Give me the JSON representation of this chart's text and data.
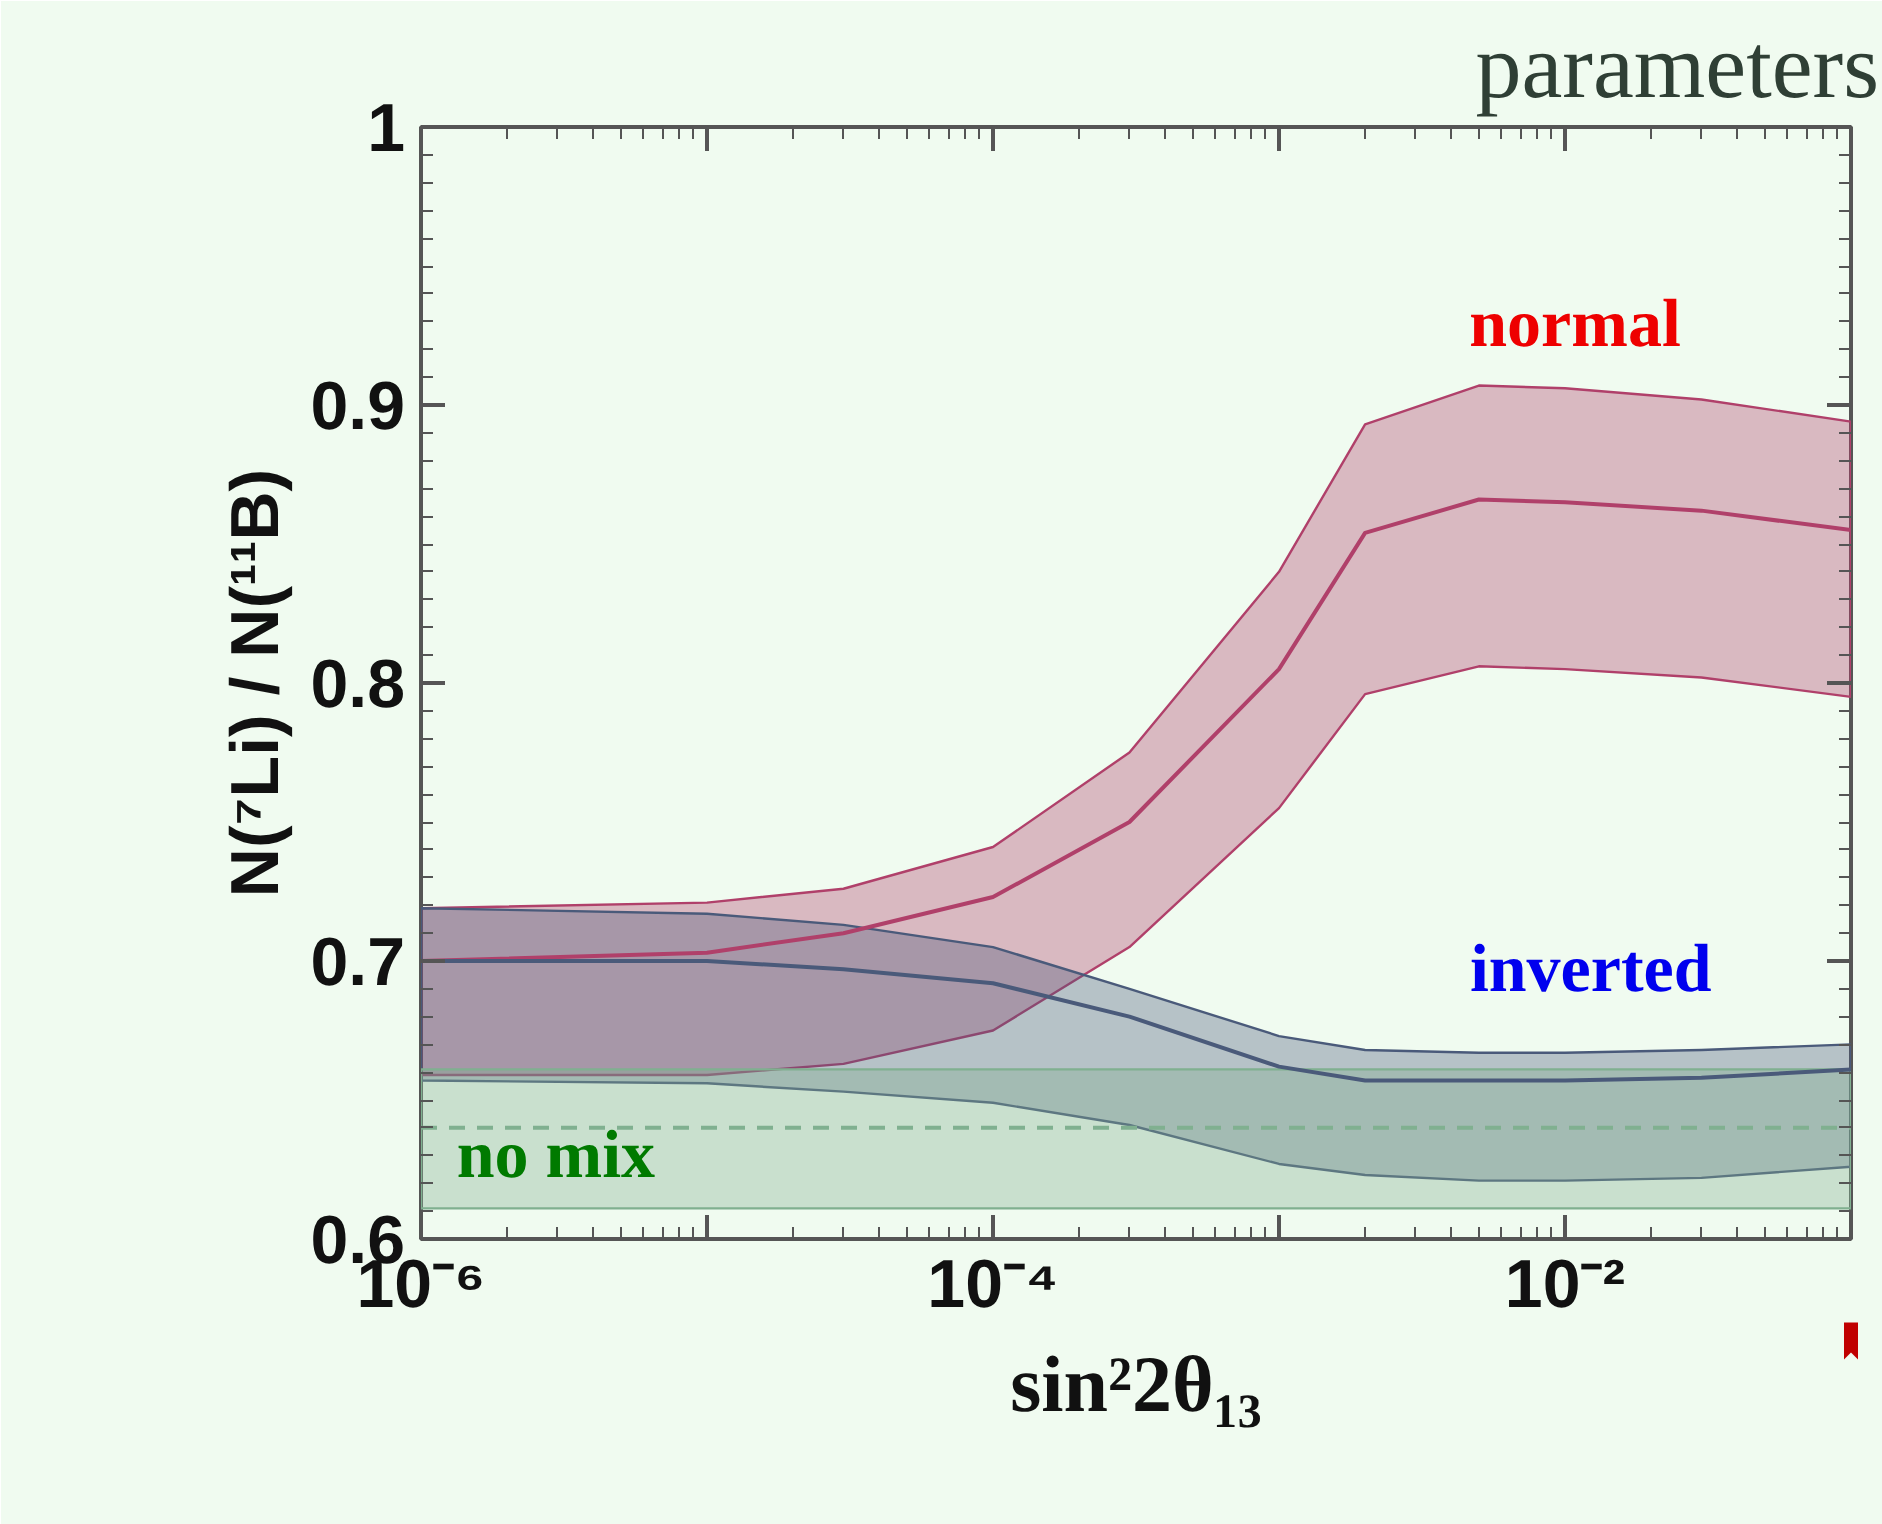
{
  "chart_data": {
    "type": "line",
    "xlabel": "sin²2θ₁₃",
    "ylabel": "N(⁷Li) / N(¹¹B)",
    "log": "x",
    "x": [
      1e-06,
      1e-05,
      3e-05,
      0.0001,
      0.0003,
      0.001,
      0.002,
      0.005,
      0.01,
      0.03,
      0.1
    ],
    "series": [
      {
        "color": "#b0406a",
        "values": [
          0.7,
          0.703,
          0.71,
          0.723,
          0.75,
          0.805,
          0.854,
          0.866,
          0.865,
          0.862,
          0.855
        ],
        "lower": [
          0.659,
          0.659,
          0.663,
          0.675,
          0.705,
          0.755,
          0.796,
          0.806,
          0.805,
          0.802,
          0.795
        ],
        "upper": [
          0.719,
          0.721,
          0.726,
          0.741,
          0.775,
          0.84,
          0.893,
          0.907,
          0.906,
          0.902,
          0.894
        ]
      },
      {
        "color": "#4a5a7a",
        "values": [
          0.7,
          0.7,
          0.697,
          0.692,
          0.68,
          0.662,
          0.657,
          0.657,
          0.657,
          0.658,
          0.661
        ],
        "lower": [
          0.657,
          0.656,
          0.653,
          0.649,
          0.641,
          0.627,
          0.623,
          0.621,
          0.621,
          0.622,
          0.626
        ],
        "upper": [
          0.719,
          0.717,
          0.713,
          0.705,
          0.69,
          0.673,
          0.668,
          0.667,
          0.667,
          0.668,
          0.67
        ]
      },
      {
        "color": "#80b090",
        "line_style": "dashed",
        "values": [
          0.64,
          0.64,
          0.64,
          0.64,
          0.64,
          0.64,
          0.64,
          0.64,
          0.64,
          0.64,
          0.64
        ],
        "lower": [
          0.611,
          0.611,
          0.611,
          0.611,
          0.611,
          0.611,
          0.611,
          0.611,
          0.611,
          0.611,
          0.611
        ],
        "upper": [
          0.661,
          0.661,
          0.661,
          0.661,
          0.661,
          0.661,
          0.661,
          0.661,
          0.661,
          0.661,
          0.661
        ]
      }
    ],
    "title": "parameters",
    "annotations": [
      "normal",
      "inverted",
      "no mix"
    ],
    "xlim": [
      1e-06,
      0.1
    ],
    "ylim": [
      0.6,
      1
    ],
    "xticks": [
      {
        "value": 1e-06,
        "label": "10⁻⁶"
      },
      {
        "value": 1e-05,
        "label": null
      },
      {
        "value": 0.0001,
        "label": "10⁻⁴"
      },
      {
        "value": 0.001,
        "label": null
      },
      {
        "value": 0.01,
        "label": "10⁻²"
      },
      {
        "value": 0.1,
        "label": null
      }
    ],
    "yticks": [
      0.6,
      0.7,
      0.8,
      0.9,
      1
    ],
    "grid": false
  }
}
